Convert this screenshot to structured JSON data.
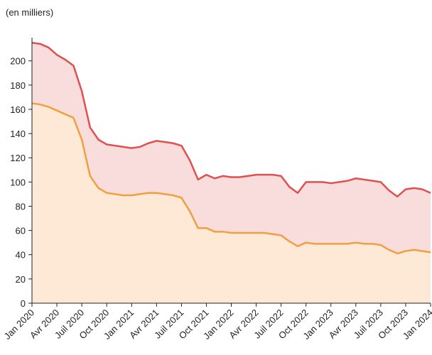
{
  "chart_data": {
    "type": "area",
    "subtitle": "(en milliers)",
    "categories": [
      "Jan 2020",
      null,
      null,
      "Avr 2020",
      null,
      null,
      "Juil 2020",
      null,
      null,
      "Oct 2020",
      null,
      null,
      "Jan 2021",
      null,
      null,
      "Avr 2021",
      null,
      null,
      "Juil 2021",
      null,
      null,
      "Oct 2021",
      null,
      null,
      "Jan 2022",
      null,
      null,
      "Avr 2022",
      null,
      null,
      "Juil 2022",
      null,
      null,
      "Oct 2022",
      null,
      null,
      "Jan 2023",
      null,
      null,
      "Avr 2023",
      null,
      null,
      "Juil 2023",
      null,
      null,
      "Oct 2023",
      null,
      null,
      "Jan 2024"
    ],
    "series": [
      {
        "color": "#e05050",
        "fill": "#f9dcdc",
        "values": [
          215,
          214,
          211,
          205,
          201,
          196,
          175,
          145,
          135,
          131,
          130,
          129,
          128,
          129,
          132,
          134,
          133,
          132,
          130,
          118,
          102,
          106,
          103,
          105,
          104,
          104,
          105,
          106,
          106,
          106,
          105,
          96,
          91,
          100,
          100,
          100,
          99,
          100,
          101,
          103,
          102,
          101,
          100,
          93,
          88,
          94,
          95,
          94,
          91
        ]
      },
      {
        "color": "#f0a040",
        "fill": "#fde9d6",
        "values": [
          165,
          164,
          162,
          159,
          156,
          153,
          135,
          105,
          95,
          91,
          90,
          89,
          89,
          90,
          91,
          91,
          90,
          89,
          87,
          76,
          62,
          62,
          59,
          59,
          58,
          58,
          58,
          58,
          58,
          57,
          56,
          51,
          47,
          50,
          49,
          49,
          49,
          49,
          49,
          50,
          49,
          49,
          48,
          44,
          41,
          43,
          44,
          43,
          42
        ]
      }
    ],
    "ylim": [
      0,
      218
    ],
    "yticks": [
      0,
      20,
      40,
      60,
      80,
      100,
      120,
      140,
      160,
      180,
      200
    ]
  }
}
